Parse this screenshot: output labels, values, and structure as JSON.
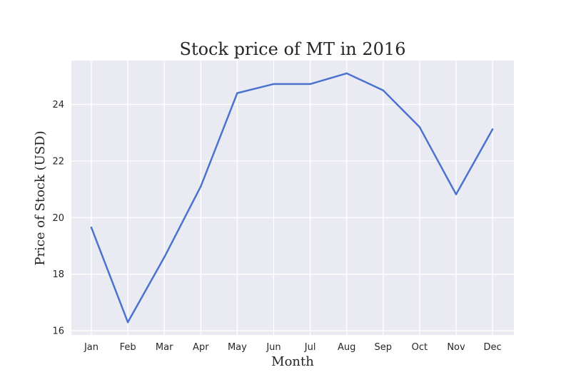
{
  "chart_data": {
    "type": "line",
    "title": "Stock price of MT in 2016",
    "xlabel": "Month",
    "ylabel": "Price of Stock (USD)",
    "categories": [
      "Jan",
      "Feb",
      "Mar",
      "Apr",
      "May",
      "Jun",
      "Jul",
      "Aug",
      "Sep",
      "Oct",
      "Nov",
      "Dec"
    ],
    "series": [
      {
        "values": [
          19.65,
          16.3,
          18.6,
          21.1,
          24.4,
          24.72,
          24.72,
          25.1,
          24.5,
          23.2,
          20.82,
          23.12
        ]
      }
    ],
    "ylim": [
      15.85,
      25.55
    ],
    "yticks": [
      16,
      18,
      20,
      22,
      24
    ],
    "ytick_labels": [
      "16",
      "18",
      "20",
      "22",
      "24"
    ],
    "grid": true,
    "colors": {
      "plot_background": "#eaeaf2",
      "grid": "#ffffff",
      "line": "#4c72d0"
    }
  }
}
